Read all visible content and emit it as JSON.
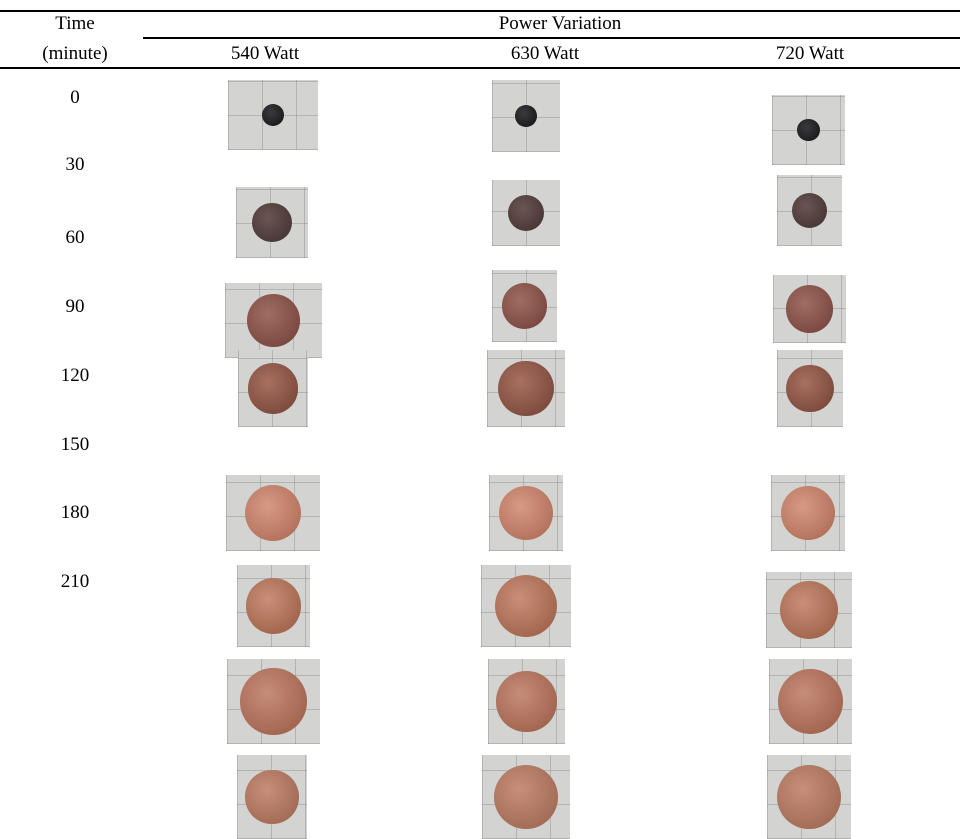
{
  "table": {
    "header": {
      "time": "Time",
      "time_unit": "(minute)",
      "group": "Power Variation",
      "columns": [
        "540 Watt",
        "630 Watt",
        "720 Watt"
      ]
    },
    "rows": [
      "0",
      "30",
      "60",
      "90",
      "120",
      "150",
      "180",
      "210"
    ]
  }
}
